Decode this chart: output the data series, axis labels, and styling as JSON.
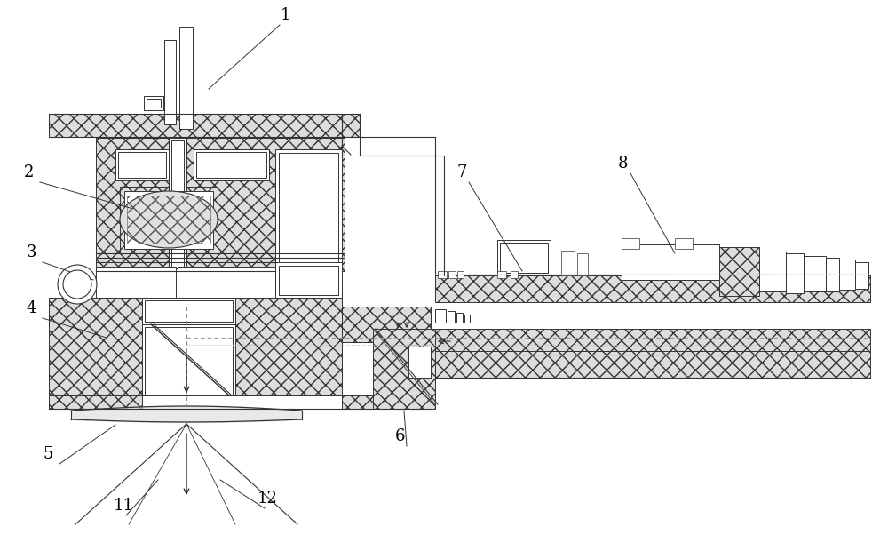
{
  "bg": "#ffffff",
  "lc": "#2a2a2a",
  "hc": "#e8e8e8",
  "figsize": [
    10.0,
    6.2
  ],
  "dpi": 100
}
